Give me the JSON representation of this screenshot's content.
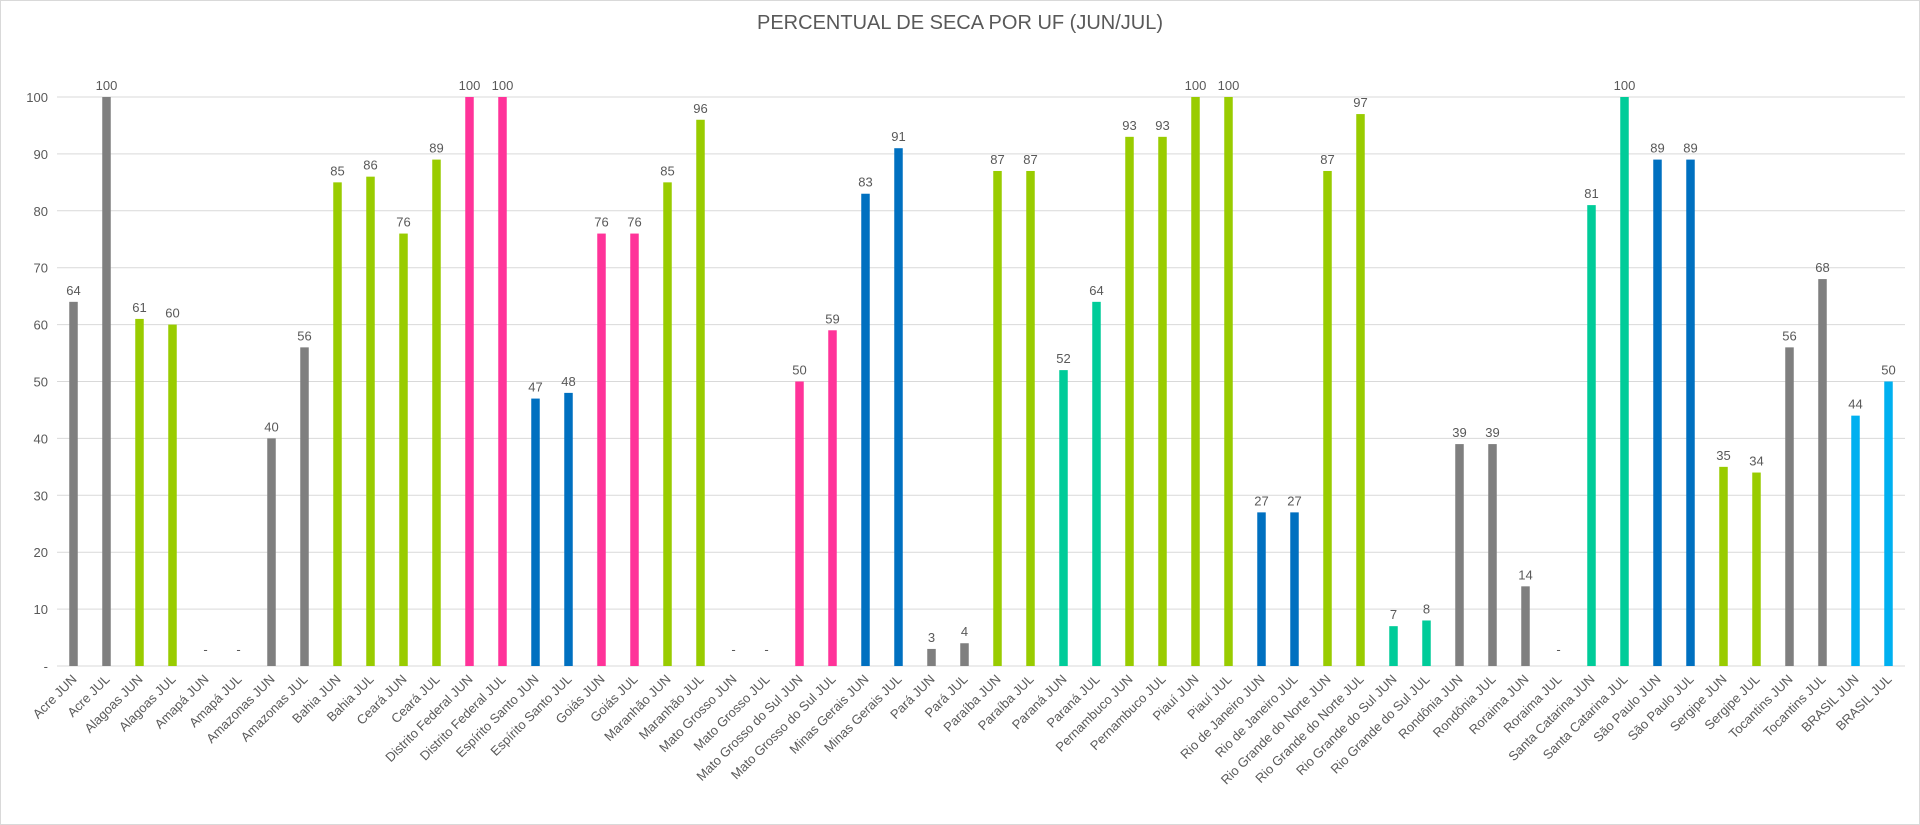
{
  "chart_data": {
    "type": "bar",
    "title": "PERCENTUAL DE SECA POR UF (JUN/JUL)",
    "xlabel": "",
    "ylabel": "",
    "ylim": [
      0,
      100
    ],
    "yticks": [
      0,
      10,
      20,
      30,
      40,
      50,
      60,
      70,
      80,
      90,
      100
    ],
    "ytick_labels": [
      "-",
      "10",
      "20",
      "30",
      "40",
      "50",
      "60",
      "70",
      "80",
      "90",
      "100"
    ],
    "grid": true,
    "legend": "none",
    "missing_label": "-",
    "colors": {
      "gray": "#7f7f7f",
      "lime": "#99cc00",
      "pink": "#ff3399",
      "blue": "#0070c0",
      "teal": "#00cc99",
      "lightblue": "#00b0f0"
    },
    "groups": [
      {
        "uf": "Acre",
        "color": "gray",
        "jun": 64,
        "jul": 100
      },
      {
        "uf": "Alagoas",
        "color": "lime",
        "jun": 61,
        "jul": 60
      },
      {
        "uf": "Amapá",
        "color": "gray",
        "jun": null,
        "jul": null
      },
      {
        "uf": "Amazonas",
        "color": "gray",
        "jun": 40,
        "jul": 56
      },
      {
        "uf": "Bahia",
        "color": "lime",
        "jun": 85,
        "jul": 86
      },
      {
        "uf": "Ceará",
        "color": "lime",
        "jun": 76,
        "jul": 89
      },
      {
        "uf": "Distrito Federal",
        "color": "pink",
        "jun": 100,
        "jul": 100
      },
      {
        "uf": "Espírito Santo",
        "color": "blue",
        "jun": 47,
        "jul": 48
      },
      {
        "uf": "Goiás",
        "color": "pink",
        "jun": 76,
        "jul": 76
      },
      {
        "uf": "Maranhão",
        "color": "lime",
        "jun": 85,
        "jul": 96
      },
      {
        "uf": "Mato Grosso",
        "color": "pink",
        "jun": null,
        "jul": null
      },
      {
        "uf": "Mato Grosso do Sul",
        "color": "pink",
        "jun": 50,
        "jul": 59
      },
      {
        "uf": "Minas Gerais",
        "color": "blue",
        "jun": 83,
        "jul": 91
      },
      {
        "uf": "Pará",
        "color": "gray",
        "jun": 3,
        "jul": 4
      },
      {
        "uf": "Paraíba",
        "color": "lime",
        "jun": 87,
        "jul": 87
      },
      {
        "uf": "Paraná",
        "color": "teal",
        "jun": 52,
        "jul": 64
      },
      {
        "uf": "Pernambuco",
        "color": "lime",
        "jun": 93,
        "jul": 93
      },
      {
        "uf": "Piauí",
        "color": "lime",
        "jun": 100,
        "jul": 100
      },
      {
        "uf": "Rio de Janeiro",
        "color": "blue",
        "jun": 27,
        "jul": 27
      },
      {
        "uf": "Rio Grande do Norte",
        "color": "lime",
        "jun": 87,
        "jul": 97
      },
      {
        "uf": "Rio Grande do Sul",
        "color": "teal",
        "jun": 7,
        "jul": 8
      },
      {
        "uf": "Rondônia",
        "color": "gray",
        "jun": 39,
        "jul": 39
      },
      {
        "uf": "Roraima",
        "color": "gray",
        "jun": 14,
        "jul": null
      },
      {
        "uf": "Santa Catarina",
        "color": "teal",
        "jun": 81,
        "jul": 100
      },
      {
        "uf": "São Paulo",
        "color": "blue",
        "jun": 89,
        "jul": 89
      },
      {
        "uf": "Sergipe",
        "color": "lime",
        "jun": 35,
        "jul": 34
      },
      {
        "uf": "Tocantins",
        "color": "gray",
        "jun": 56,
        "jul": 68
      },
      {
        "uf": "BRASIL",
        "color": "lightblue",
        "jun": 44,
        "jul": 50
      }
    ],
    "suffix_jun": "JUN",
    "suffix_jul": "JUL"
  }
}
